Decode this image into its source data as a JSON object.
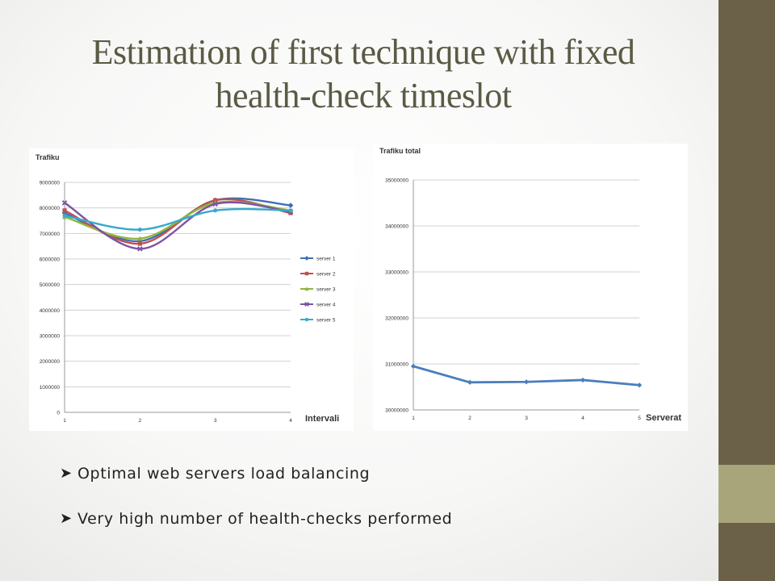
{
  "slide": {
    "title_line1": "Estimation of first technique with fixed",
    "title_line2": "health-check timeslot",
    "title_color": "#5b5a45",
    "sidebar_colors": [
      "#6b6148",
      "#a8a57a",
      "#6b6148"
    ],
    "bullet_marker_icon": "arrow-bullet-icon",
    "bullets": [
      "Optimal web servers load balancing",
      "Very high number of health-checks performed"
    ]
  },
  "chart_data": [
    {
      "type": "line",
      "title": "Trafiku",
      "xlabel": "Intervali",
      "ylabel": "",
      "categories": [
        "1",
        "2",
        "3",
        "4"
      ],
      "ylim": [
        0,
        9000000
      ],
      "yticks": [
        "0",
        "1000000",
        "2000000",
        "3000000",
        "4000000",
        "5000000",
        "6000000",
        "7000000",
        "8000000",
        "9000000"
      ],
      "grid": true,
      "smooth": true,
      "legend": "right",
      "series": [
        {
          "name": "server 1",
          "color": "#3f6fb6",
          "marker": "diamond",
          "values": [
            7800000,
            6700000,
            8300000,
            8100000
          ]
        },
        {
          "name": "server 2",
          "color": "#c0504d",
          "marker": "square",
          "values": [
            7900000,
            6600000,
            8300000,
            7800000
          ]
        },
        {
          "name": "server 3",
          "color": "#8fb640",
          "marker": "triangle",
          "values": [
            7650000,
            6800000,
            8200000,
            7900000
          ]
        },
        {
          "name": "server 4",
          "color": "#7b54a3",
          "marker": "x",
          "values": [
            8200000,
            6400000,
            8150000,
            7850000
          ]
        },
        {
          "name": "server 5",
          "color": "#36a9cc",
          "marker": "star",
          "values": [
            7700000,
            7150000,
            7900000,
            7900000
          ]
        }
      ]
    },
    {
      "type": "line",
      "title": "Trafiku total",
      "xlabel": "Serverat",
      "ylabel": "",
      "categories": [
        "1",
        "2",
        "3",
        "4",
        "5"
      ],
      "ylim": [
        30000000,
        35000000
      ],
      "yticks": [
        "30000000",
        "31000000",
        "32000000",
        "33000000",
        "34000000",
        "35000000"
      ],
      "grid": true,
      "smooth": false,
      "legend": "none",
      "series": [
        {
          "name": "",
          "color": "#4a7ebb",
          "marker": "diamond",
          "values": [
            30950000,
            30600000,
            30610000,
            30650000,
            30540000
          ]
        }
      ]
    }
  ]
}
